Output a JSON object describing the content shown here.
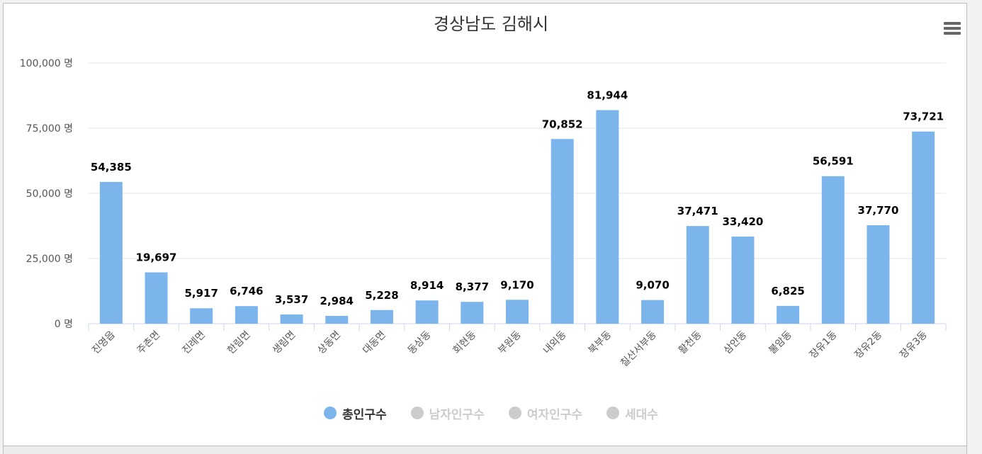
{
  "chart_data": {
    "type": "bar",
    "title": "경상남도 김해시",
    "unit_suffix": " 명",
    "ylim": [
      0,
      100000
    ],
    "yticks": [
      0,
      25000,
      50000,
      75000,
      100000
    ],
    "ytick_labels": [
      "0 명",
      "25,000 명",
      "50,000 명",
      "75,000 명",
      "100,000 명"
    ],
    "grid": true,
    "legend_position": "bottom",
    "categories": [
      "진영읍",
      "주촌면",
      "진례면",
      "한림면",
      "생림면",
      "상동면",
      "대동면",
      "동상동",
      "회현동",
      "부원동",
      "내외동",
      "북부동",
      "칠산서부동",
      "활천동",
      "삼안동",
      "불암동",
      "장유1동",
      "장유2동",
      "장유3동"
    ],
    "series": [
      {
        "name": "총인구수",
        "color": "#7cb5ec",
        "active": true,
        "values": [
          54385,
          19697,
          5917,
          6746,
          3537,
          2984,
          5228,
          8914,
          8377,
          9170,
          70852,
          81944,
          9070,
          37471,
          33420,
          6825,
          56591,
          37770,
          73721
        ],
        "labels": [
          "54,385",
          "19,697",
          "5,917",
          "6,746",
          "3,537",
          "2,984",
          "5,228",
          "8,914",
          "8,377",
          "9,170",
          "70,852",
          "81,944",
          "9,070",
          "37,471",
          "33,420",
          "6,825",
          "56,591",
          "37,770",
          "73,721"
        ]
      },
      {
        "name": "남자인구수",
        "color": "#cccccc",
        "active": false
      },
      {
        "name": "여자인구수",
        "color": "#cccccc",
        "active": false
      },
      {
        "name": "세대수",
        "color": "#cccccc",
        "active": false
      }
    ]
  },
  "colors": {
    "bar": "#7cb5ec",
    "legend_active_text": "#333333",
    "legend_inactive_text": "#cccccc",
    "menu_icon": "#666666"
  },
  "menu_icon": "hamburger-menu-icon"
}
